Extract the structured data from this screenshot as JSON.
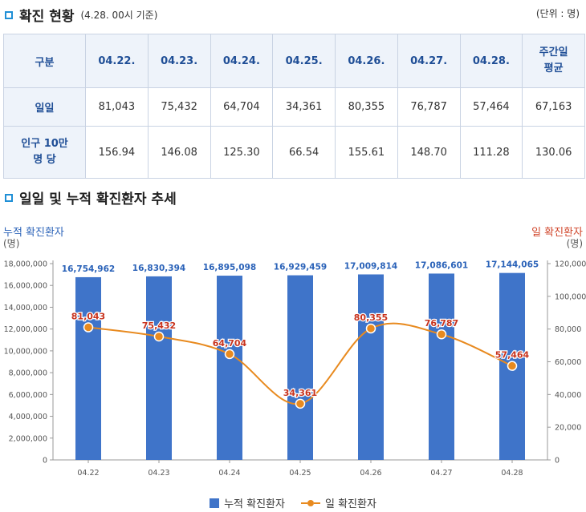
{
  "section1": {
    "title": "확진 현황",
    "subtitle": "(4.28. 00시 기준)",
    "unit": "(단위 : 명)"
  },
  "table": {
    "header": [
      "구분",
      "04.22.",
      "04.23.",
      "04.24.",
      "04.25.",
      "04.26.",
      "04.27.",
      "04.28.",
      "주간일",
      "평균"
    ],
    "rows": [
      {
        "label": [
          "일일"
        ],
        "values": [
          "81,043",
          "75,432",
          "64,704",
          "34,361",
          "80,355",
          "76,787",
          "57,464",
          "67,163"
        ]
      },
      {
        "label": [
          "인구 10만",
          "명 당"
        ],
        "values": [
          "156.94",
          "146.08",
          "125.30",
          "66.54",
          "155.61",
          "148.70",
          "111.28",
          "130.06"
        ]
      }
    ]
  },
  "section2": {
    "title": "일일 및 누적 확진환자 추세"
  },
  "chart_data": {
    "type": "bar+line",
    "categories": [
      "04.22",
      "04.23",
      "04.24",
      "04.25",
      "04.26",
      "04.27",
      "04.28"
    ],
    "series": [
      {
        "name": "누적 확진환자",
        "type": "bar",
        "axis": "left",
        "values": [
          16754962,
          16830394,
          16895098,
          16929459,
          17009814,
          17086601,
          17144065
        ],
        "labels": [
          "16,754,962",
          "16,830,394",
          "16,895,098",
          "16,929,459",
          "17,009,814",
          "17,086,601",
          "17,144,065"
        ],
        "color": "#3f74c9"
      },
      {
        "name": "일 확진환자",
        "type": "line",
        "axis": "right",
        "values": [
          81043,
          75432,
          64704,
          34361,
          80355,
          76787,
          57464
        ],
        "labels": [
          "81,043",
          "75,432",
          "64,704",
          "34,361",
          "80,355",
          "76,787",
          "57,464"
        ],
        "color": "#e88a1f"
      }
    ],
    "left_axis": {
      "title": "누적 확진환자",
      "unit": "(명)",
      "ylim": [
        0,
        18000000
      ],
      "ticks": [
        "0",
        "2,000,000",
        "4,000,000",
        "6,000,000",
        "8,000,000",
        "10,000,000",
        "12,000,000",
        "14,000,000",
        "16,000,000",
        "18,000,000"
      ]
    },
    "right_axis": {
      "title": "일 확진환자",
      "unit": "(명)",
      "ylim": [
        0,
        120000
      ],
      "ticks": [
        "0",
        "20,000",
        "40,000",
        "60,000",
        "80,000",
        "100,000",
        "120,000"
      ]
    },
    "grid": false,
    "legend_position": "bottom",
    "label_colors": {
      "bar": "#2a62b8",
      "line": "#c8331e",
      "left_title": "#2a62b8",
      "right_title": "#d0452a"
    }
  }
}
